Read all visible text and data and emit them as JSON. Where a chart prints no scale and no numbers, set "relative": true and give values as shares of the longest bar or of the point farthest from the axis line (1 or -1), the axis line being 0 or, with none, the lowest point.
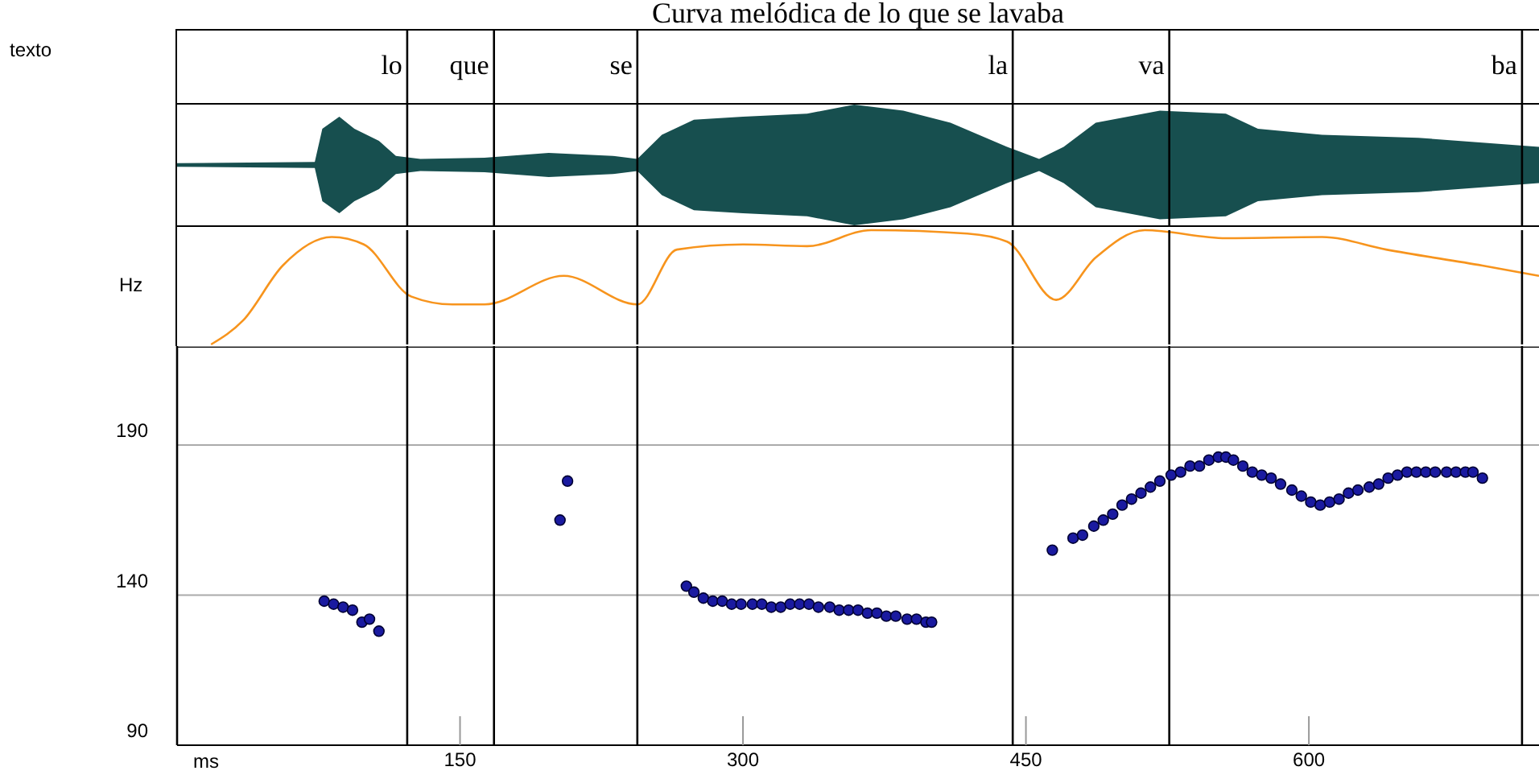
{
  "chart_data": [
    {
      "type": "area",
      "title": "Curva melódica de lo que se lavaba",
      "ylabel": "texto",
      "relative": true,
      "tick_labels": false,
      "xlim": [
        0,
        722
      ],
      "x": [
        0,
        73,
        77,
        86,
        94,
        107,
        116,
        129,
        163,
        197,
        231,
        244,
        257,
        274,
        300,
        334,
        359,
        385,
        410,
        440,
        457,
        470,
        487,
        521,
        556,
        573,
        607,
        658,
        722
      ],
      "series": [
        {
          "color": "#174f4f",
          "values": [
            0.03,
            0.05,
            0.6,
            0.8,
            0.6,
            0.4,
            0.15,
            0.1,
            0.12,
            0.2,
            0.15,
            0.1,
            0.5,
            0.75,
            0.8,
            0.85,
            1,
            0.9,
            0.7,
            0.3,
            0.1,
            0.3,
            0.7,
            0.9,
            0.85,
            0.6,
            0.5,
            0.45,
            0.3
          ]
        }
      ],
      "ref_lines": [
        {
          "axis": "x",
          "value": 122,
          "label": "lo"
        },
        {
          "axis": "x",
          "value": 168,
          "label": "que"
        },
        {
          "axis": "x",
          "value": 244,
          "label": "se"
        },
        {
          "axis": "x",
          "value": 443,
          "label": "la"
        },
        {
          "axis": "x",
          "value": 526,
          "label": "va"
        },
        {
          "axis": "x",
          "value": 713,
          "label": "ba"
        }
      ]
    },
    {
      "type": "line",
      "ylabel": "Hz",
      "relative": true,
      "tick_labels": false,
      "xlim": [
        0,
        722
      ],
      "x": [
        18,
        35,
        56,
        82,
        99,
        124,
        146,
        163,
        205,
        244,
        265,
        300,
        334,
        368,
        419,
        440,
        466,
        487,
        513,
        556,
        607,
        641,
        692,
        722
      ],
      "series": [
        {
          "color": "#f7941d",
          "values": [
            0,
            0.21,
            0.69,
            0.94,
            0.875,
            0.42,
            0.35,
            0.35,
            0.6,
            0.35,
            0.83,
            0.875,
            0.86,
            1,
            0.97,
            0.9,
            0.39,
            0.76,
            1,
            0.93,
            0.94,
            0.83,
            0.69,
            0.6
          ]
        }
      ],
      "ref_lines": [
        {
          "axis": "x",
          "value": 122
        },
        {
          "axis": "x",
          "value": 168
        },
        {
          "axis": "x",
          "value": 244
        },
        {
          "axis": "x",
          "value": 443
        },
        {
          "axis": "x",
          "value": 526
        },
        {
          "axis": "x",
          "value": 713
        }
      ]
    },
    {
      "type": "scatter",
      "xlabel": "ms",
      "xlim": [
        0,
        722
      ],
      "xticks": [
        150,
        300,
        450,
        600
      ],
      "ylim": [
        90,
        223
      ],
      "yticks": [
        90,
        140,
        190
      ],
      "grid": "y",
      "marker": "circle",
      "x": [
        78,
        83,
        88,
        93,
        98,
        102,
        107,
        203,
        207,
        270,
        274,
        279,
        284,
        289,
        294,
        299,
        305,
        310,
        315,
        320,
        325,
        330,
        335,
        340,
        346,
        351,
        356,
        361,
        366,
        371,
        376,
        381,
        387,
        392,
        397,
        400,
        464,
        475,
        480,
        486,
        491,
        496,
        501,
        506,
        511,
        516,
        521,
        527,
        532,
        537,
        542,
        547,
        552,
        556,
        560,
        565,
        570,
        575,
        580,
        585,
        591,
        596,
        601,
        606,
        611,
        616,
        621,
        626,
        632,
        637,
        642,
        647,
        652,
        657,
        662,
        667,
        673,
        678,
        683,
        687,
        692
      ],
      "series": [
        {
          "color": "#1a1aa0",
          "values": [
            138,
            137,
            136,
            135,
            131,
            132,
            128,
            165,
            178,
            143,
            141,
            139,
            138,
            138,
            137,
            137,
            137,
            137,
            136,
            136,
            137,
            137,
            137,
            136,
            136,
            135,
            135,
            135,
            134,
            134,
            133,
            133,
            132,
            132,
            131,
            131,
            155,
            159,
            160,
            163,
            165,
            167,
            170,
            172,
            174,
            176,
            178,
            180,
            181,
            183,
            183,
            185,
            186,
            186,
            185,
            183,
            181,
            180,
            179,
            177,
            175,
            173,
            171,
            170,
            171,
            172,
            174,
            175,
            176,
            177,
            179,
            180,
            181,
            181,
            181,
            181,
            181,
            181,
            181,
            181,
            179
          ]
        }
      ],
      "ref_lines": [
        {
          "axis": "x",
          "value": 122
        },
        {
          "axis": "x",
          "value": 168
        },
        {
          "axis": "x",
          "value": 244
        },
        {
          "axis": "x",
          "value": 443
        },
        {
          "axis": "x",
          "value": 526
        },
        {
          "axis": "x",
          "value": 713
        }
      ]
    }
  ]
}
